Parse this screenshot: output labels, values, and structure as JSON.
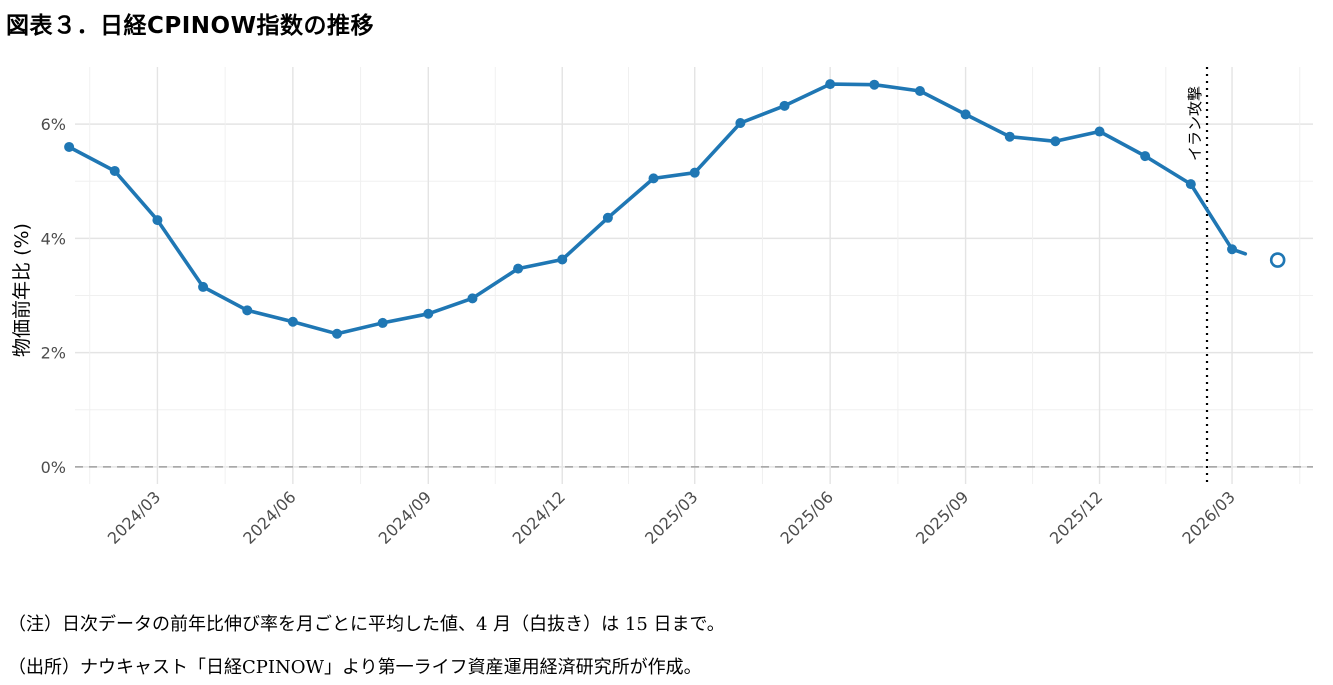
{
  "title": "図表３．日経CPINOW指数の推移",
  "notes": {
    "note1": "（注）日次データの前年比伸び率を月ごとに平均した値、4 月（白抜き）は 15 日まで。",
    "note2": "（出所）ナウキャスト「日経CPINOW」より第一ライフ資産運用経済研究所が作成。"
  },
  "chart_data": {
    "type": "line",
    "ylabel": "物価前年比 (%)",
    "ylim": [
      -0.3,
      7.0
    ],
    "y_ticks": [
      {
        "value": 0,
        "label": "0%"
      },
      {
        "value": 2,
        "label": "2%"
      },
      {
        "value": 4,
        "label": "4%"
      },
      {
        "value": 6,
        "label": "6%"
      }
    ],
    "x_range": [
      "2024-01-05",
      "2026-04-25"
    ],
    "x_ticks": [
      {
        "date": "2024-03-01",
        "label": "2024/03"
      },
      {
        "date": "2024-06-01",
        "label": "2024/06"
      },
      {
        "date": "2024-09-01",
        "label": "2024/09"
      },
      {
        "date": "2024-12-01",
        "label": "2024/12"
      },
      {
        "date": "2025-03-01",
        "label": "2025/03"
      },
      {
        "date": "2025-06-01",
        "label": "2025/06"
      },
      {
        "date": "2025-09-01",
        "label": "2025/09"
      },
      {
        "date": "2025-12-01",
        "label": "2025/12"
      },
      {
        "date": "2026-03-01",
        "label": "2026/03"
      }
    ],
    "grid": true,
    "series": [
      {
        "color": "#1f77b4",
        "points": [
          {
            "x": "2024-01-01",
            "y": 5.6
          },
          {
            "x": "2024-02-01",
            "y": 5.18
          },
          {
            "x": "2024-03-01",
            "y": 4.32
          },
          {
            "x": "2024-04-01",
            "y": 3.15
          },
          {
            "x": "2024-05-01",
            "y": 2.74
          },
          {
            "x": "2024-06-01",
            "y": 2.54
          },
          {
            "x": "2024-07-01",
            "y": 2.33
          },
          {
            "x": "2024-08-01",
            "y": 2.52
          },
          {
            "x": "2024-09-01",
            "y": 2.68
          },
          {
            "x": "2024-10-01",
            "y": 2.95
          },
          {
            "x": "2024-11-01",
            "y": 3.47
          },
          {
            "x": "2024-12-01",
            "y": 3.63
          },
          {
            "x": "2025-01-01",
            "y": 4.36
          },
          {
            "x": "2025-02-01",
            "y": 5.05
          },
          {
            "x": "2025-03-01",
            "y": 5.15
          },
          {
            "x": "2025-04-01",
            "y": 6.02
          },
          {
            "x": "2025-05-01",
            "y": 6.32
          },
          {
            "x": "2025-06-01",
            "y": 6.7
          },
          {
            "x": "2025-07-01",
            "y": 6.69
          },
          {
            "x": "2025-08-01",
            "y": 6.58
          },
          {
            "x": "2025-09-01",
            "y": 6.17
          },
          {
            "x": "2025-10-01",
            "y": 5.78
          },
          {
            "x": "2025-11-01",
            "y": 5.7
          },
          {
            "x": "2025-12-01",
            "y": 5.87
          },
          {
            "x": "2026-01-01",
            "y": 5.44
          },
          {
            "x": "2026-02-01",
            "y": 4.95
          },
          {
            "x": "2026-03-01",
            "y": 3.81
          }
        ],
        "line_extension": {
          "x": "2026-03-10",
          "y": 3.73
        },
        "hollow_point": {
          "x": "2026-04-01",
          "y": 3.62
        }
      }
    ],
    "reference_lines": {
      "horizontal": {
        "y": 0,
        "style": "dashed",
        "color": "#a0a0a0"
      },
      "vertical": {
        "x": "2026-02-12",
        "style": "dotted",
        "color": "#000000",
        "label": "イラン攻撃"
      }
    }
  }
}
